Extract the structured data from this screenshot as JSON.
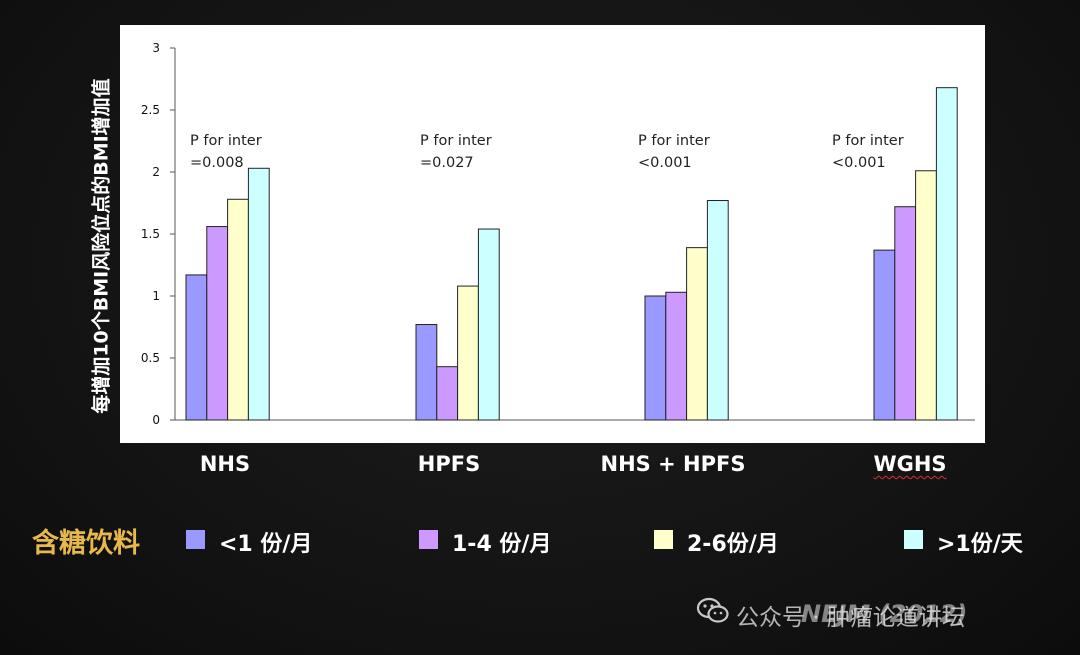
{
  "chart_data": {
    "type": "bar",
    "ylabel": "每增加10个BMI风险位点的BMI增加值",
    "ylim": [
      0,
      3
    ],
    "yticks": [
      "0",
      "0.5",
      "1",
      "1.5",
      "2",
      "2.5",
      "3"
    ],
    "categories": [
      "NHS",
      "HPFS",
      "NHS + HPFS",
      "WGHS"
    ],
    "series": [
      {
        "name": "<1 份/月",
        "color": "#9999ff",
        "values": [
          1.17,
          0.77,
          1.0,
          1.37
        ]
      },
      {
        "name": "1-4 份/月",
        "color": "#cc99ff",
        "values": [
          1.56,
          0.43,
          1.03,
          1.72
        ]
      },
      {
        "name": "2-6份/月",
        "color": "#ffffcc",
        "values": [
          1.78,
          1.08,
          1.39,
          2.01
        ]
      },
      {
        "name": ">1份/天",
        "color": "#ccffff",
        "values": [
          2.03,
          1.54,
          1.77,
          2.68
        ]
      }
    ],
    "annotations": [
      {
        "group": "NHS",
        "line1": "P for inter",
        "line2": "=0.008"
      },
      {
        "group": "HPFS",
        "line1": "P for inter",
        "line2": "=0.027"
      },
      {
        "group": "NHS + HPFS",
        "line1": "P for inter",
        "line2": "<0.001"
      },
      {
        "group": "WGHS",
        "line1": "P for inter",
        "line2": "<0.001"
      }
    ],
    "grid": false
  },
  "legend_title": "含糖饮料",
  "watermark_text": "公众号 · 肿瘤论道讲坛",
  "citation": "NEJM (2012)",
  "colors": {
    "legend_title": "#e8b84a",
    "background": "#141414",
    "wechat_icon": "#c8c8c8"
  }
}
